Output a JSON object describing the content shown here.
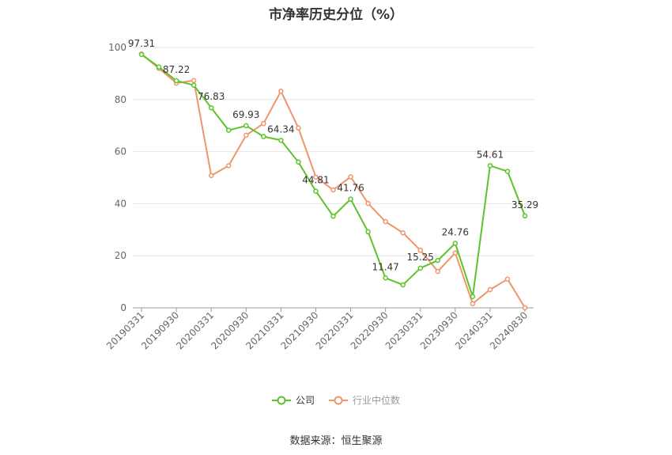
{
  "chart_data": {
    "type": "line",
    "title": "市净率历史分位（%）",
    "xlabel": "",
    "ylabel": "",
    "ylim": [
      0,
      100
    ],
    "yticks": [
      0,
      20,
      40,
      60,
      80,
      100
    ],
    "x": [
      "20190331",
      "20190630",
      "20190930",
      "20191231",
      "20200331",
      "20200630",
      "20200930",
      "20201231",
      "20210331",
      "20210630",
      "20210930",
      "20211231",
      "20220331",
      "20220630",
      "20220930",
      "20221231",
      "20230331",
      "20230630",
      "20230930",
      "20231231",
      "20240331",
      "20240630",
      "20240830"
    ],
    "xtick_labels": [
      "20190331",
      "20190930",
      "20200331",
      "20200930",
      "20210331",
      "20210930",
      "20220331",
      "20220930",
      "20230331",
      "20230930",
      "20240331",
      "20240830"
    ],
    "series": [
      {
        "name": "公司",
        "color": "#5cc42a",
        "values": [
          97.31,
          92.5,
          87.22,
          85.5,
          76.83,
          68.2,
          69.93,
          65.8,
          64.34,
          56.0,
          44.81,
          35.2,
          41.76,
          29.2,
          11.47,
          8.8,
          15.25,
          18.2,
          24.76,
          4.3,
          54.61,
          52.4,
          35.29
        ],
        "labeled_points": [
          {
            "index": 0,
            "text": "97.31"
          },
          {
            "index": 2,
            "text": "87.22"
          },
          {
            "index": 4,
            "text": "76.83"
          },
          {
            "index": 6,
            "text": "69.93"
          },
          {
            "index": 8,
            "text": "64.34"
          },
          {
            "index": 10,
            "text": "44.81"
          },
          {
            "index": 12,
            "text": "41.76"
          },
          {
            "index": 14,
            "text": "11.47"
          },
          {
            "index": 16,
            "text": "15.25"
          },
          {
            "index": 18,
            "text": "24.76"
          },
          {
            "index": 20,
            "text": "54.61"
          },
          {
            "index": 22,
            "text": "35.29"
          }
        ]
      },
      {
        "name": "行业中位数",
        "color": "#f0956a",
        "values": [
          97.5,
          92.0,
          86.3,
          87.3,
          50.8,
          54.6,
          66.3,
          70.8,
          83.2,
          69.1,
          50.2,
          45.3,
          50.3,
          40.1,
          33.1,
          28.8,
          22.1,
          14.0,
          21.1,
          1.6,
          7.0,
          11.0,
          0.0
        ]
      }
    ],
    "grid": true,
    "legend_position": "bottom-center"
  },
  "legend": {
    "items": [
      {
        "label": "公司",
        "color": "#5cc42a"
      },
      {
        "label": "行业中位数",
        "color": "#f0956a"
      }
    ]
  },
  "footer": {
    "source": "数据来源：恒生聚源"
  }
}
